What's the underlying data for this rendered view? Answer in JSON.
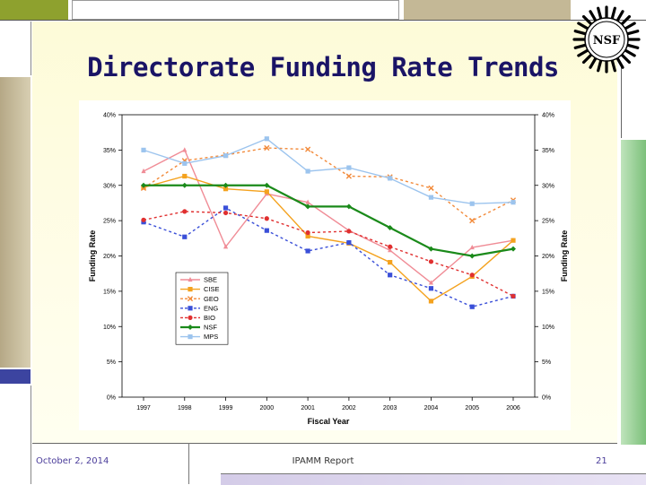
{
  "slide": {
    "title": "Directorate Funding Rate Trends",
    "logo_text": "NSF",
    "footer_date": "October 2, 2014",
    "footer_center": "IPAMM Report",
    "page_number": "21"
  },
  "colors": {
    "title": "#1a1466",
    "accent_olive": "#8ea12e",
    "accent_tan": "#c4b896",
    "accent_blue": "#3c44a0",
    "accent_green": "#7cc07a"
  },
  "chart_data": {
    "type": "line",
    "title": "",
    "xlabel": "Fiscal Year",
    "ylabel": "Funding Rate",
    "ylabel_right": "Funding Rate",
    "categories": [
      "1997",
      "1998",
      "1999",
      "2000",
      "2001",
      "2002",
      "2003",
      "2004",
      "2005",
      "2006"
    ],
    "ylim": [
      0,
      0.4
    ],
    "yticks": [
      "0%",
      "5%",
      "10%",
      "15%",
      "20%",
      "25%",
      "30%",
      "35%",
      "40%"
    ],
    "grid": false,
    "legend_position": "center-left",
    "series": [
      {
        "name": "SBE",
        "color": "#f08c96",
        "dash": false,
        "marker": "triangle",
        "values": [
          0.32,
          0.35,
          0.213,
          0.288,
          0.276,
          0.236,
          0.208,
          0.162,
          0.212,
          0.222
        ]
      },
      {
        "name": "CISE",
        "color": "#f4a21e",
        "dash": false,
        "marker": "x-square",
        "values": [
          0.297,
          0.313,
          0.295,
          0.291,
          0.228,
          0.218,
          0.191,
          0.136,
          0.171,
          0.222
        ]
      },
      {
        "name": "GEO",
        "color": "#f28a3a",
        "dash": true,
        "marker": "x",
        "values": [
          0.296,
          0.335,
          0.343,
          0.353,
          0.351,
          0.313,
          0.312,
          0.296,
          0.25,
          0.279
        ]
      },
      {
        "name": "ENG",
        "color": "#3a4fd8",
        "dash": true,
        "marker": "square",
        "values": [
          0.248,
          0.227,
          0.268,
          0.236,
          0.207,
          0.219,
          0.173,
          0.154,
          0.128,
          0.143
        ]
      },
      {
        "name": "BIO",
        "color": "#e03030",
        "dash": true,
        "marker": "circle",
        "values": [
          0.251,
          0.263,
          0.261,
          0.253,
          0.233,
          0.235,
          0.213,
          0.192,
          0.173,
          0.143
        ]
      },
      {
        "name": "NSF",
        "color": "#1a8a1a",
        "dash": false,
        "marker": "diamond",
        "values": [
          0.3,
          0.3,
          0.3,
          0.3,
          0.27,
          0.27,
          0.24,
          0.21,
          0.2,
          0.21
        ]
      },
      {
        "name": "MPS",
        "color": "#9cc4ee",
        "dash": false,
        "marker": "square",
        "values": [
          0.35,
          0.331,
          0.342,
          0.366,
          0.32,
          0.325,
          0.31,
          0.283,
          0.274,
          0.276
        ]
      }
    ]
  }
}
